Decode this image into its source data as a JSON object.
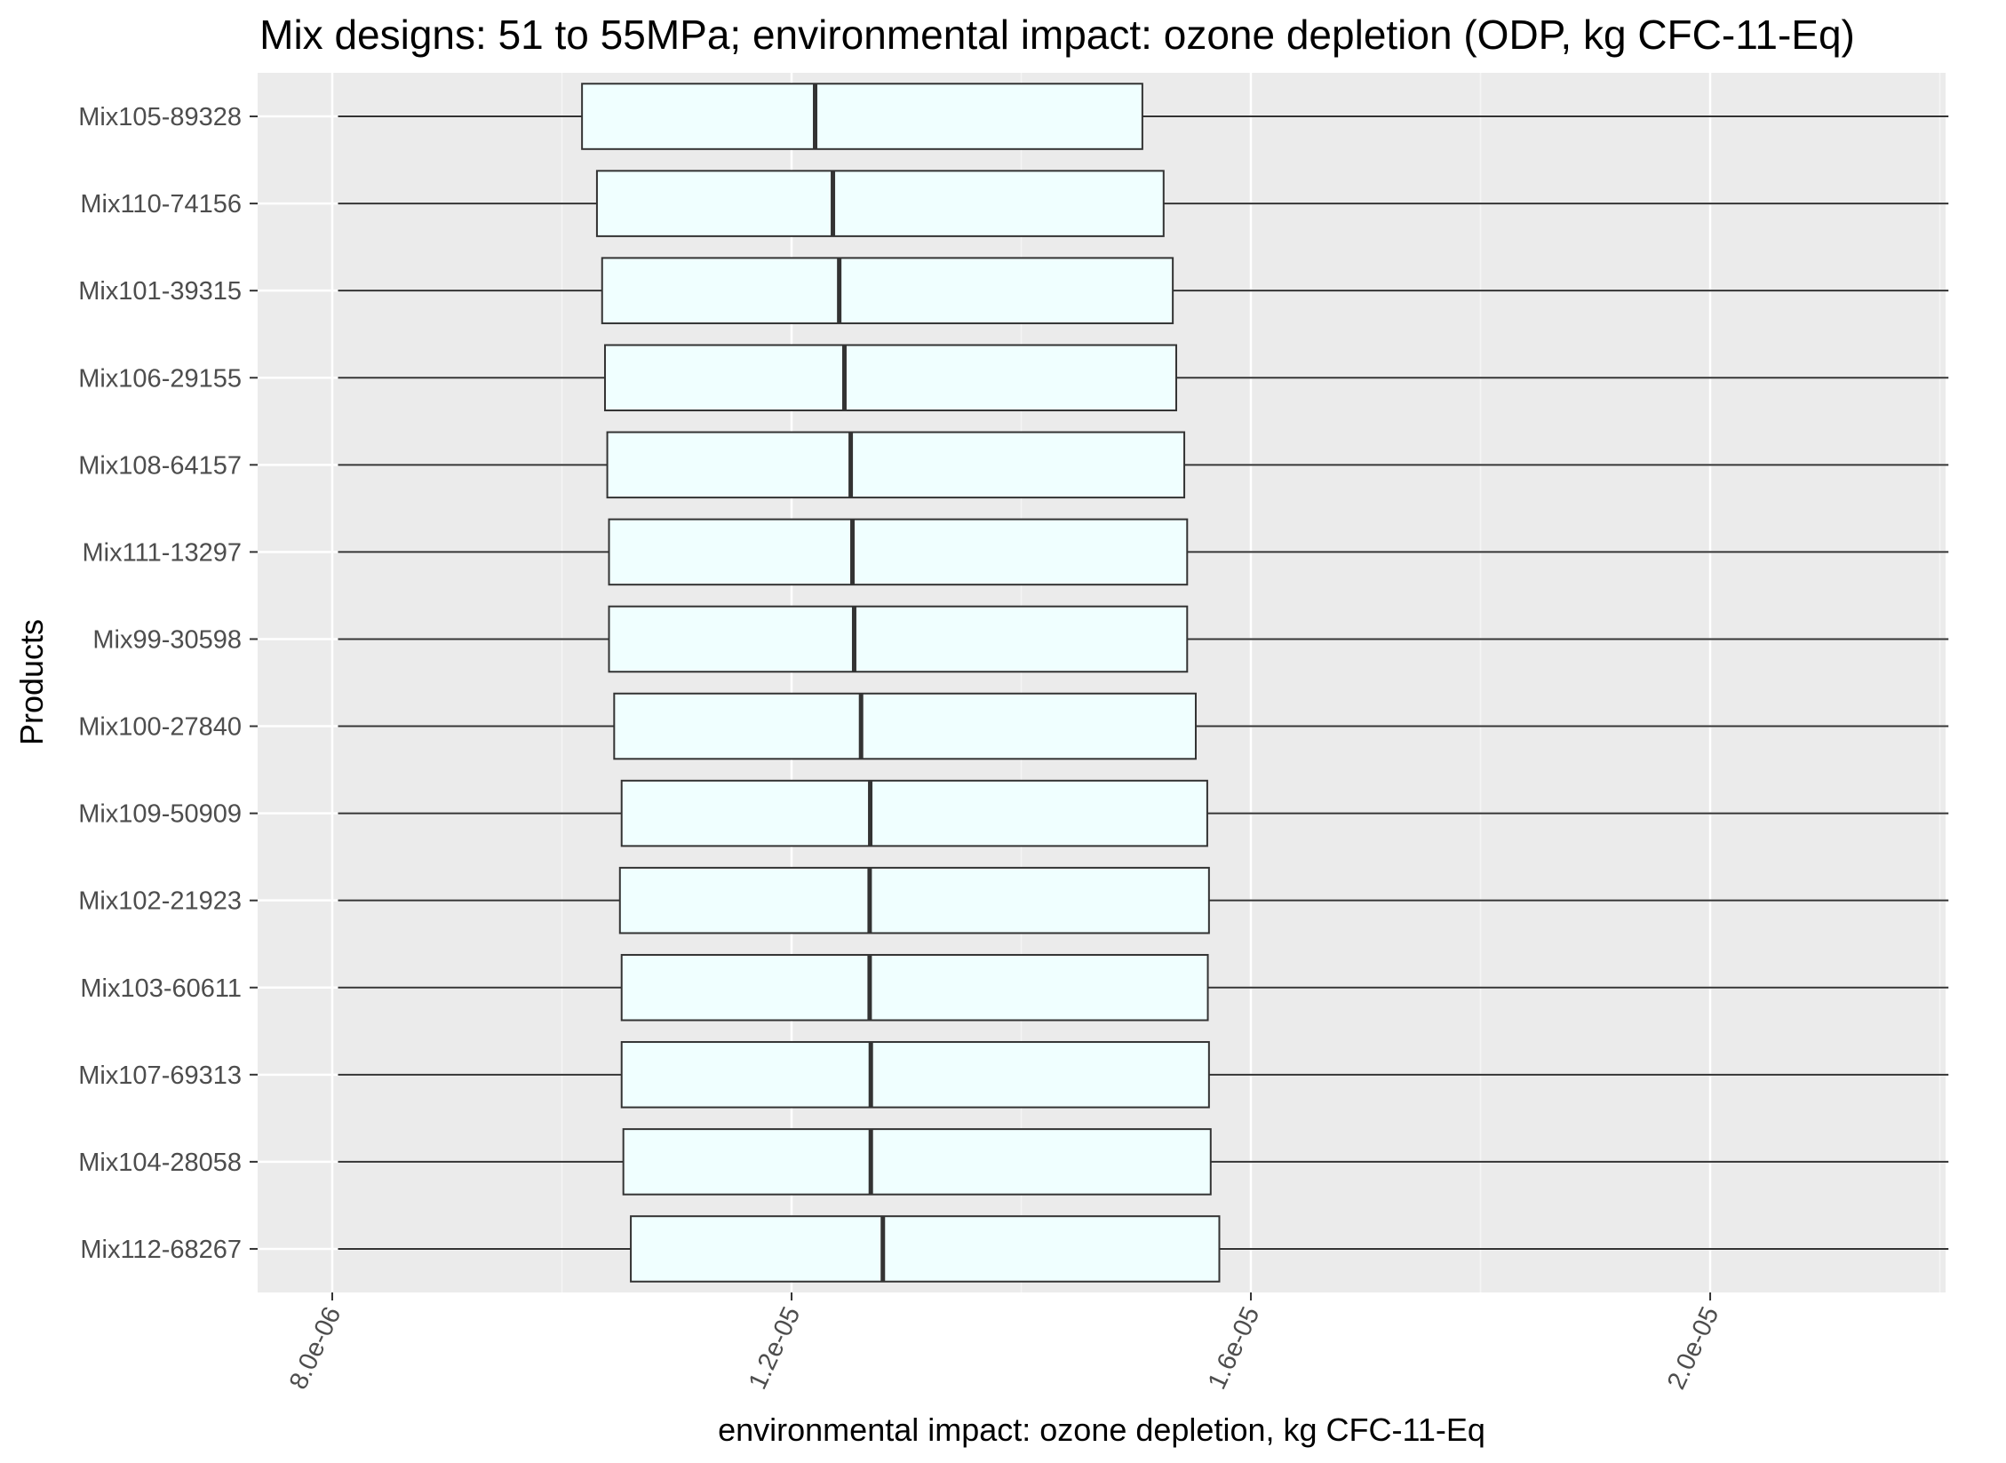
{
  "chart_data": {
    "type": "boxplot",
    "orientation": "horizontal",
    "title": "Mix designs: 51 to 55MPa; environmental impact: ozone depletion (ODP, kg CFC-11-Eq)",
    "xlabel": "environmental impact: ozone depletion, kg CFC-11-Eq",
    "ylabel": "Products",
    "xlim": [
      7.35e-06,
      2.205e-05
    ],
    "x_ticks": [
      8e-06,
      1.2e-05,
      1.6e-05,
      2e-05
    ],
    "x_tick_labels": [
      "8.0e-06",
      "1.2e-05",
      "1.6e-05",
      "2.0e-05"
    ],
    "x_minor_ticks": [
      1e-05,
      1.4e-05,
      1.8e-05,
      2.2e-05
    ],
    "grid": true,
    "colors": {
      "panel_background": "#ebebeb",
      "grid_major": "#ffffff",
      "grid_minor": "#f5f5f5",
      "box_fill": "#f0ffff",
      "box_stroke": "#333333",
      "median": "#333333"
    },
    "categories": [
      "Mix105-89328",
      "Mix110-74156",
      "Mix101-39315",
      "Mix106-29155",
      "Mix108-64157",
      "Mix111-13297",
      "Mix99-30598",
      "Mix100-27840",
      "Mix109-50909",
      "Mix102-21923",
      "Mix103-60611",
      "Mix107-69313",
      "Mix104-28058",
      "Mix112-68267"
    ],
    "boxes": [
      {
        "name": "Mix105-89328",
        "min": 8.05e-06,
        "q1": 1.0175e-05,
        "median": 1.2205e-05,
        "q3": 1.5055e-05,
        "max": 2.2075e-05
      },
      {
        "name": "Mix110-74156",
        "min": 8.05e-06,
        "q1": 1.0305e-05,
        "median": 1.236e-05,
        "q3": 1.524e-05,
        "max": 2.2075e-05
      },
      {
        "name": "Mix101-39315",
        "min": 8.05e-06,
        "q1": 1.035e-05,
        "median": 1.2415e-05,
        "q3": 1.532e-05,
        "max": 2.2075e-05
      },
      {
        "name": "Mix106-29155",
        "min": 8.05e-06,
        "q1": 1.0375e-05,
        "median": 1.246e-05,
        "q3": 1.535e-05,
        "max": 2.2075e-05
      },
      {
        "name": "Mix108-64157",
        "min": 8.05e-06,
        "q1": 1.0395e-05,
        "median": 1.2515e-05,
        "q3": 1.542e-05,
        "max": 2.2075e-05
      },
      {
        "name": "Mix111-13297",
        "min": 8.05e-06,
        "q1": 1.041e-05,
        "median": 1.253e-05,
        "q3": 1.5445e-05,
        "max": 2.2075e-05
      },
      {
        "name": "Mix99-30598",
        "min": 8.05e-06,
        "q1": 1.041e-05,
        "median": 1.2545e-05,
        "q3": 1.5445e-05,
        "max": 2.2075e-05
      },
      {
        "name": "Mix100-27840",
        "min": 8.05e-06,
        "q1": 1.0455e-05,
        "median": 1.2605e-05,
        "q3": 1.552e-05,
        "max": 2.2075e-05
      },
      {
        "name": "Mix109-50909",
        "min": 8.05e-06,
        "q1": 1.052e-05,
        "median": 1.2685e-05,
        "q3": 1.562e-05,
        "max": 2.2075e-05
      },
      {
        "name": "Mix102-21923",
        "min": 8.05e-06,
        "q1": 1.0505e-05,
        "median": 1.268e-05,
        "q3": 1.5635e-05,
        "max": 2.2075e-05
      },
      {
        "name": "Mix103-60611",
        "min": 8.05e-06,
        "q1": 1.052e-05,
        "median": 1.268e-05,
        "q3": 1.5625e-05,
        "max": 2.2075e-05
      },
      {
        "name": "Mix107-69313",
        "min": 8.05e-06,
        "q1": 1.052e-05,
        "median": 1.269e-05,
        "q3": 1.5635e-05,
        "max": 2.2075e-05
      },
      {
        "name": "Mix104-28058",
        "min": 8.05e-06,
        "q1": 1.0535e-05,
        "median": 1.269e-05,
        "q3": 1.565e-05,
        "max": 2.2075e-05
      },
      {
        "name": "Mix112-68267",
        "min": 8.05e-06,
        "q1": 1.06e-05,
        "median": 1.2795e-05,
        "q3": 1.5725e-05,
        "max": 2.2075e-05
      }
    ]
  }
}
